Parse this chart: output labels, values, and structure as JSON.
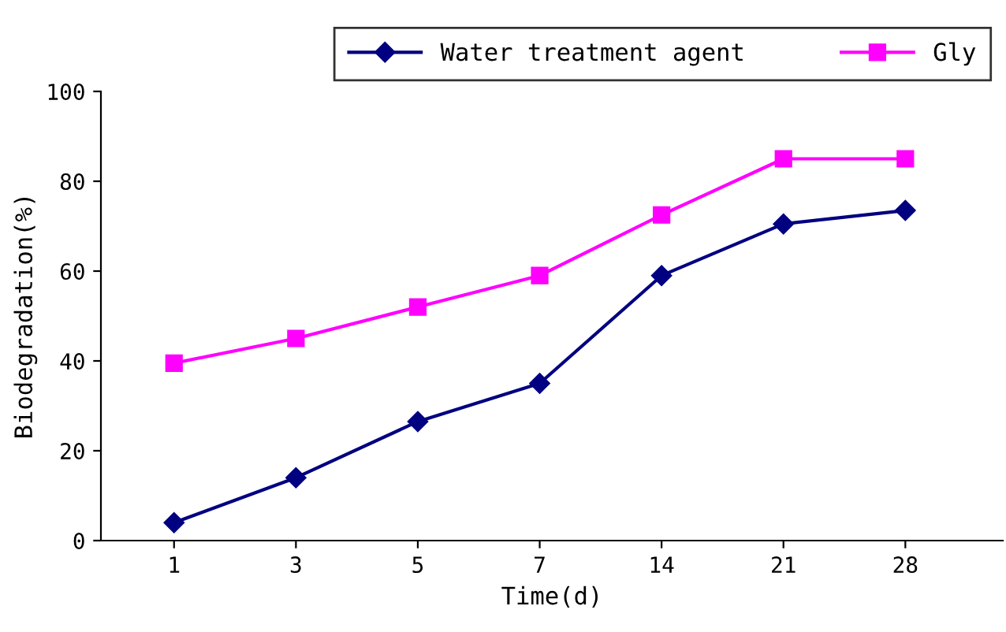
{
  "chart_data": {
    "type": "line",
    "xlabel": "Time(d)",
    "ylabel": "Biodegradation(%)",
    "categories": [
      "1",
      "3",
      "5",
      "7",
      "14",
      "21",
      "28"
    ],
    "series": [
      {
        "name": "Water treatment agent",
        "color": "#000080",
        "marker": "diamond",
        "values": [
          4,
          14,
          26.5,
          35,
          59,
          70.5,
          73.5
        ]
      },
      {
        "name": "Gly",
        "color": "#ff00ff",
        "marker": "square",
        "values": [
          39.5,
          45,
          52,
          59,
          72.5,
          85,
          85
        ]
      }
    ],
    "ylim": [
      0,
      100
    ],
    "yticks": [
      0,
      20,
      40,
      60,
      80,
      100
    ],
    "grid": false,
    "legend": "top right"
  }
}
